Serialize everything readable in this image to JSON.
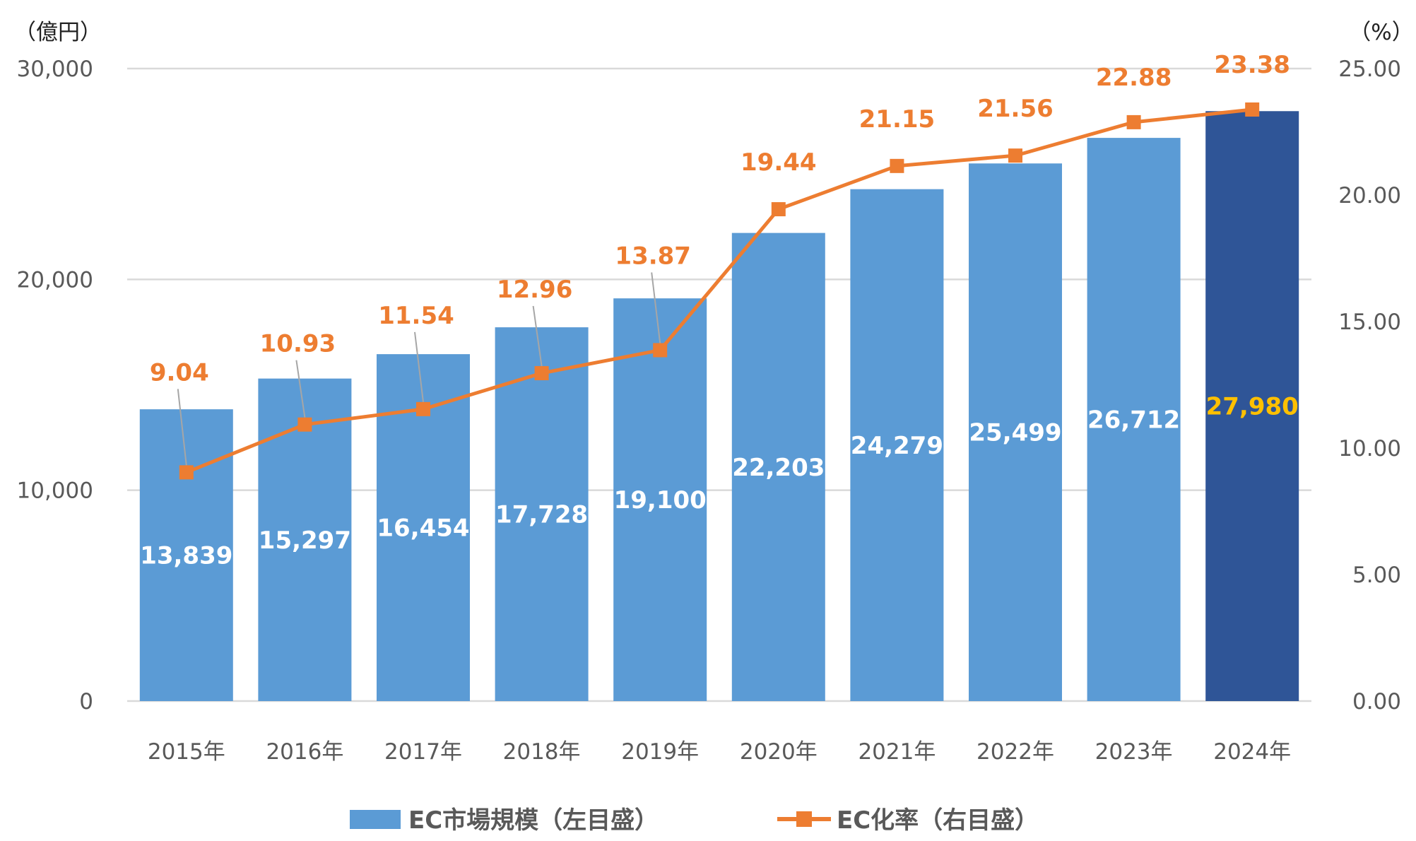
{
  "chart_data": {
    "type": "bar+line",
    "categories": [
      "2015年",
      "2016年",
      "2017年",
      "2018年",
      "2019年",
      "2020年",
      "2021年",
      "2022年",
      "2023年",
      "2024年"
    ],
    "left_axis": {
      "unit_label": "（億円）",
      "ylim": [
        0,
        30000
      ],
      "ticks": [
        "0",
        "10,000",
        "20,000",
        "30,000"
      ],
      "tick_values": [
        0,
        10000,
        20000,
        30000
      ]
    },
    "right_axis": {
      "unit_label": "（%）",
      "ylim": [
        0,
        25
      ],
      "ticks": [
        "0.00",
        "5.00",
        "10.00",
        "15.00",
        "20.00",
        "25.00"
      ],
      "tick_values": [
        0,
        5,
        10,
        15,
        20,
        25
      ]
    },
    "grid": true,
    "legend_position": "bottom",
    "series": [
      {
        "name": "EC市場規模（左目盛）",
        "type": "bar",
        "axis": "left",
        "values": [
          13839,
          15297,
          16454,
          17728,
          19100,
          22203,
          24279,
          25499,
          26712,
          27980
        ],
        "labels": [
          "13,839",
          "15,297",
          "16,454",
          "17,728",
          "19,100",
          "22,203",
          "24,279",
          "25,499",
          "26,712",
          "27,980"
        ],
        "color": "#5B9BD5",
        "highlight_color": "#2F5597",
        "highlight_label_color": "#FFC000"
      },
      {
        "name": "EC化率（右目盛）",
        "type": "line",
        "axis": "right",
        "values": [
          9.04,
          10.93,
          11.54,
          12.96,
          13.87,
          19.44,
          21.15,
          21.56,
          22.88,
          23.38
        ],
        "labels": [
          "9.04",
          "10.93",
          "11.54",
          "12.96",
          "13.87",
          "19.44",
          "21.15",
          "21.56",
          "22.88",
          "23.38"
        ],
        "color": "#ED7D31"
      }
    ]
  }
}
